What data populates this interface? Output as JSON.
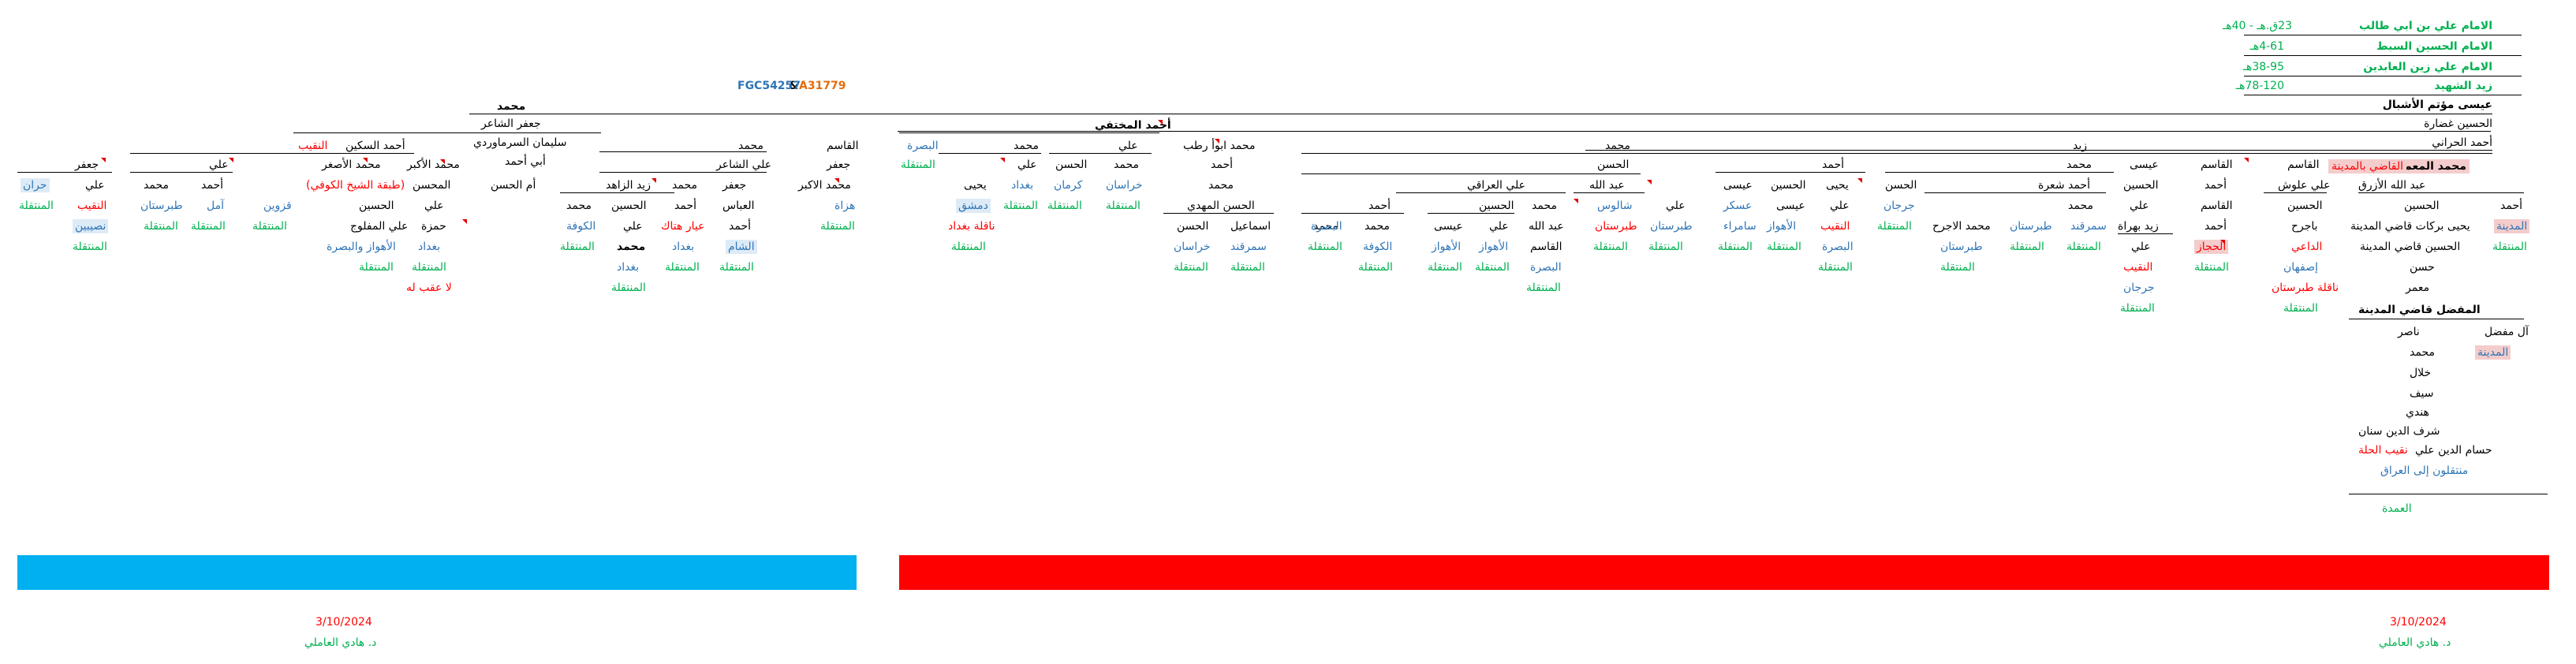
{
  "header": {
    "imam_ali": "الامام علي بن ابي طالب",
    "imam_ali_dates": "23ق.هـ - 40هـ",
    "imam_hussein": "الامام الحسين السبط",
    "imam_hussein_dates": "4-61هـ",
    "imam_zain": "الامام علي زين العابدين",
    "imam_zain_dates": "38-95هـ",
    "zaid": "زيد الشهيد",
    "zaid_dates": "78-120هـ",
    "haplo_a": "A31779",
    "amp": "&",
    "haplo_b": "FGC54257",
    "isa": "عيسى مؤتم الأشبال"
  },
  "spine": {
    "hussein_ghadara": "الحسين غضارة",
    "ahmad_harrani": "أحمد الحراني",
    "zaid": "زيد",
    "mohammad_muammar": "محمد المعمر",
    "qadi_madina": "القاضي بالمدينة"
  },
  "tree": {
    "mohammad_root": "محمد",
    "jafar_shaer": "جعفر الشاعر",
    "sulayman": "سليمان السرماوردي",
    "abi_ahmad": "أبي أحمد",
    "um_hassan": "أم الحسن",
    "ahmad_sikkeen": "أحمد السكين",
    "naqib": "النقيب",
    "mohammad_asghar": "محمد الأصغر",
    "shaykh_kufi": "(طبقة الشيخ الكوفي)",
    "mohammad_akbar": "محمد الأكبر",
    "muhassin": "المحسن",
    "jafar": "جعفر",
    "ali": "علي",
    "ahmad": "أحمد",
    "mohammad": "محمد",
    "hussein": "الحسين",
    "hassan": "الحسن",
    "qasim": "القاسم",
    "yahya": "يحيى",
    "isa": "عيسى",
    "abbas": "العباس",
    "abdullah": "عبد الله",
    "ismail": "اسماعيل",
    "hamza": "حمزة",
    "ali_shaer": "علي الشاعر",
    "zaid_zahid": "زيد الزاهد",
    "mohammad_akbar2": "محمد الاكبر",
    "ali_mafluj": "علي المفلوج",
    "ahmad_mukhtafi": "أحمد المختفي",
    "mohammad_abu_ratb": "محمد ابوأ رطب",
    "hassan_mahdi": "الحسن المهدي",
    "ali_iraqi": "علي العراقي",
    "ahmad_shaara": "أحمد شعرة",
    "zaid_bahra": "زيد بهراة",
    "mohammad_ajrah": "محمد الاجرح",
    "ali_alloush": "علي علوش",
    "abdullah_azraq": "عبد الله الأزرق",
    "bajrih": "باجرح",
    "yahya_barakat": "يحيى بركات قاضي المدينة",
    "hussein_qadi": "الحسين قاضي المدينة",
    "hassan_s": "حسن",
    "muammar": "معمر",
    "mufaddal": "المفضل قاضي المدينة",
    "al_mufaddal": "آل مفضل",
    "nasir": "ناصر",
    "khallal": "خلال",
    "sayf": "سيف",
    "hindi": "هندي",
    "sharaf": "شرف الدين سنان",
    "husam": "حسام الدين علي",
    "naqib_hilla": "نقيب الحلة",
    "muntaqilun_iraq": "منتقلون إلى العراق",
    "umda": "العمدة",
    "daai": "الداعي",
    "naqila_tabaristan": "ناقلة طبرستان",
    "la_aqab": "لا عقب له",
    "ayyar": "عيار هتاك",
    "naqila_baghdad": "ناقلة بغداد"
  },
  "places": {
    "muntaqila": "المنتقلة",
    "madina": "المدينة",
    "isfahan": "إصفهان",
    "hijaz": "الحجاز",
    "jurjan": "جرجان",
    "samarqand": "سمرقند",
    "tabaristan": "طبرستان",
    "basra": "البصرة",
    "ahwaz": "الأهواز",
    "askar": "عسكر",
    "samarra": "سامراء",
    "shalus": "شالوس",
    "kufa": "الكوفة",
    "khurasan": "خراسان",
    "kirman": "كرمان",
    "baghdad": "بغداد",
    "dimashq": "دمشق",
    "sham": "الشام",
    "hazat": "هزاة",
    "amul": "آمل",
    "qazwin": "قزوين",
    "ahwaz_basra": "الأهواز والبصرة",
    "haran": "حران",
    "nasibin": "نصيبين"
  },
  "colors": {
    "band_left": "#00b0f0",
    "band_right": "#ff0000",
    "green": "#00b050",
    "blue": "#2e75b6",
    "red": "#ff0000"
  },
  "footer": {
    "left_date": "3/10/2024",
    "left_author": "د. هادي العاملي",
    "right_date": "3/10/2024",
    "right_author": "د. هادي العاملي"
  }
}
